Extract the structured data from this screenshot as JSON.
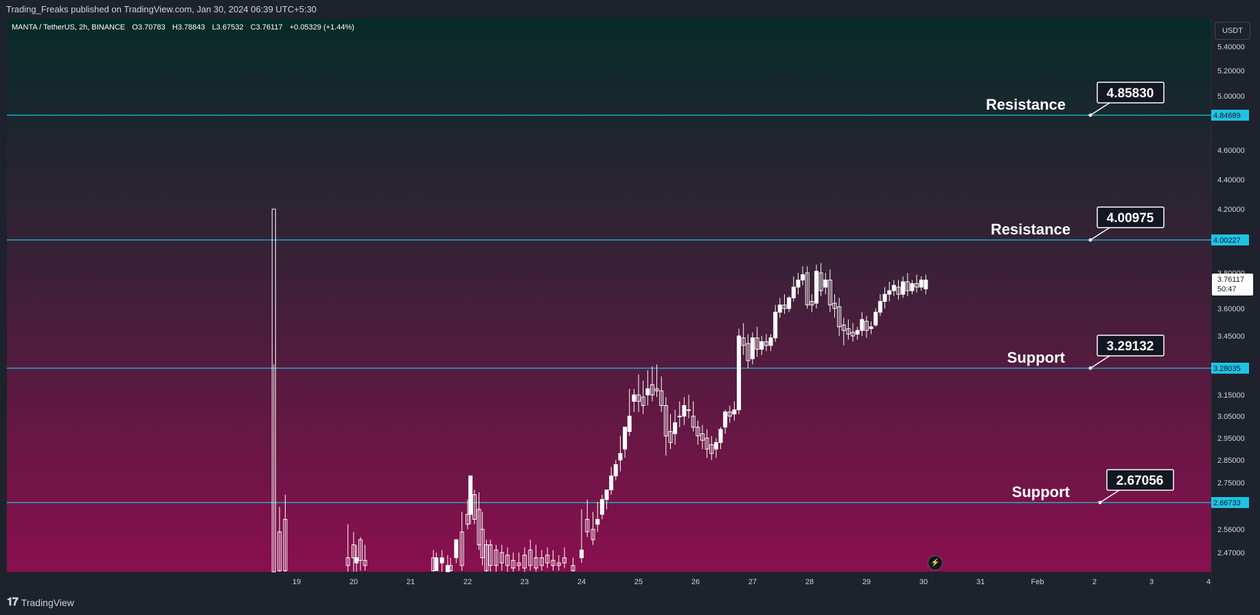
{
  "header": {
    "publish_info": "Trading_Freaks published on TradingView.com, Jan 30, 2024 06:39 UTC+5:30"
  },
  "legend": {
    "symbol": "MANTA / TetherUS, 2h, BINANCE",
    "open": "O3.70783",
    "high": "H3.78843",
    "low": "L3.67532",
    "close": "C3.76117",
    "change": "+0.05329 (+1.44%)"
  },
  "currency_label": "USDT",
  "price_tag": {
    "price": "3.76117",
    "countdown": "50:47"
  },
  "footer": {
    "brand": "TradingView"
  },
  "colors": {
    "bg_top": "#062b26",
    "bg_mid": "#3a2137",
    "bg_bottom": "#8a0f4f",
    "line": "#1fc3e4",
    "candle": "#ffffff",
    "axis_text": "#d1d4dc"
  },
  "chart_data": {
    "type": "candlestick",
    "symbol": "MANTA / TetherUS",
    "interval": "2h",
    "exchange": "BINANCE",
    "y_axis": {
      "range": [
        2.4,
        5.5
      ],
      "ticks": [
        "5.40000",
        "5.20000",
        "5.00000",
        "4.60000",
        "4.40000",
        "4.20000",
        "3.80000",
        "3.60000",
        "3.45000",
        "3.15000",
        "3.05000",
        "2.95000",
        "2.85000",
        "2.75000",
        "2.56000",
        "2.47000"
      ],
      "tick_values": [
        5.4,
        5.2,
        5.0,
        4.6,
        4.4,
        4.2,
        3.8,
        3.6,
        3.45,
        3.15,
        3.05,
        2.95,
        2.85,
        2.75,
        2.56,
        2.47
      ]
    },
    "x_axis": {
      "ticks": [
        "19",
        "20",
        "21",
        "22",
        "23",
        "24",
        "25",
        "26",
        "27",
        "28",
        "29",
        "30",
        "31",
        "Feb",
        "2",
        "3",
        "4"
      ],
      "tick_day_index": [
        0,
        1,
        2,
        3,
        4,
        5,
        6,
        7,
        8,
        9,
        10,
        11,
        12,
        13,
        14,
        15,
        16
      ]
    },
    "horizontal_lines": [
      {
        "kind": "resistance",
        "text": "Resistance",
        "callout": "4.85830",
        "axis_label": "4.84689",
        "value": 4.84689
      },
      {
        "kind": "resistance",
        "text": "Resistance",
        "callout": "4.00975",
        "axis_label": "4.00227",
        "value": 4.00227
      },
      {
        "kind": "support",
        "text": "Support",
        "callout": "3.29132",
        "axis_label": "3.28035",
        "value": 3.28035
      },
      {
        "kind": "support",
        "text": "Support",
        "callout": "2.67056",
        "axis_label": "2.66733",
        "value": 2.66733
      }
    ],
    "candles": [
      [
        18.6,
        4.2,
        3.3,
        2.35,
        2.3
      ],
      [
        18.7,
        2.55,
        2.65,
        2.4,
        2.39
      ],
      [
        18.8,
        2.6,
        2.7,
        2.4,
        2.38
      ],
      [
        19.9,
        2.45,
        2.58,
        2.42,
        2.35
      ],
      [
        20.0,
        2.5,
        2.55,
        2.45,
        2.38
      ],
      [
        20.05,
        2.43,
        2.5,
        2.45,
        2.38
      ],
      [
        20.12,
        2.52,
        2.53,
        2.44,
        2.4
      ],
      [
        20.2,
        2.44,
        2.5,
        2.42,
        2.4
      ],
      [
        21.4,
        2.45,
        2.48,
        2.4,
        2.39
      ],
      [
        21.45,
        2.4,
        2.47,
        2.45,
        2.4
      ],
      [
        21.55,
        2.43,
        2.48,
        2.45,
        2.38
      ],
      [
        21.65,
        2.39,
        2.46,
        2.42,
        2.38
      ],
      [
        21.7,
        2.42,
        2.45,
        2.4,
        2.36
      ],
      [
        21.8,
        2.45,
        2.5,
        2.52,
        2.43
      ],
      [
        21.9,
        2.55,
        2.63,
        2.42,
        2.4
      ],
      [
        22.0,
        2.62,
        2.68,
        2.58,
        2.56
      ],
      [
        22.05,
        2.62,
        2.69,
        2.78,
        2.58
      ],
      [
        22.12,
        2.7,
        2.72,
        2.6,
        2.58
      ],
      [
        22.2,
        2.64,
        2.71,
        2.5,
        2.48
      ],
      [
        22.26,
        2.56,
        2.63,
        2.45,
        2.42
      ],
      [
        22.33,
        2.5,
        2.52,
        2.4,
        2.38
      ],
      [
        22.4,
        2.5,
        2.52,
        2.42,
        2.39
      ],
      [
        22.5,
        2.48,
        2.5,
        2.42,
        2.38
      ],
      [
        22.6,
        2.47,
        2.5,
        2.43,
        2.4
      ],
      [
        22.7,
        2.46,
        2.49,
        2.42,
        2.39
      ],
      [
        22.8,
        2.44,
        2.47,
        2.41,
        2.38
      ],
      [
        22.9,
        2.43,
        2.47,
        2.42,
        2.4
      ],
      [
        23.0,
        2.46,
        2.49,
        2.41,
        2.39
      ],
      [
        23.1,
        2.48,
        2.52,
        2.42,
        2.4
      ],
      [
        23.2,
        2.45,
        2.5,
        2.41,
        2.39
      ],
      [
        23.3,
        2.45,
        2.48,
        2.42,
        2.4
      ],
      [
        23.4,
        2.46,
        2.49,
        2.43,
        2.41
      ],
      [
        23.5,
        2.44,
        2.48,
        2.42,
        2.4
      ],
      [
        23.6,
        2.43,
        2.46,
        2.42,
        2.4
      ],
      [
        23.7,
        2.45,
        2.49,
        2.43,
        2.41
      ],
      [
        23.85,
        2.42,
        2.45,
        2.4,
        2.38
      ],
      [
        24.0,
        2.45,
        2.64,
        2.48,
        2.43
      ],
      [
        24.1,
        2.6,
        2.68,
        2.55,
        2.53
      ],
      [
        24.2,
        2.56,
        2.63,
        2.52,
        2.5
      ],
      [
        24.28,
        2.58,
        2.67,
        2.6,
        2.55
      ],
      [
        24.36,
        2.62,
        2.7,
        2.68,
        2.6
      ],
      [
        24.44,
        2.68,
        2.72,
        2.72,
        2.64
      ],
      [
        24.52,
        2.72,
        2.82,
        2.78,
        2.7
      ],
      [
        24.6,
        2.78,
        2.85,
        2.83,
        2.76
      ],
      [
        24.68,
        2.85,
        2.96,
        2.88,
        2.8
      ],
      [
        24.76,
        2.9,
        2.98,
        3.0,
        2.86
      ],
      [
        24.84,
        2.98,
        3.18,
        3.05,
        2.96
      ],
      [
        24.92,
        3.12,
        3.18,
        3.15,
        3.07
      ],
      [
        25.0,
        3.15,
        3.25,
        3.12,
        3.07
      ],
      [
        25.08,
        3.14,
        3.22,
        3.1,
        3.06
      ],
      [
        25.16,
        3.15,
        3.27,
        3.18,
        3.1
      ],
      [
        25.24,
        3.2,
        3.29,
        3.15,
        3.12
      ],
      [
        25.32,
        3.18,
        3.3,
        3.17,
        3.14
      ],
      [
        25.4,
        3.17,
        3.24,
        3.1,
        3.07
      ],
      [
        25.48,
        3.1,
        3.14,
        2.96,
        2.87
      ],
      [
        25.56,
        2.98,
        3.06,
        2.93,
        2.9
      ],
      [
        25.64,
        2.97,
        3.08,
        3.02,
        2.92
      ],
      [
        25.72,
        3.05,
        3.12,
        3.05,
        3.0
      ],
      [
        25.8,
        3.05,
        3.14,
        3.1,
        3.01
      ],
      [
        25.88,
        3.08,
        3.15,
        3.08,
        3.04
      ],
      [
        25.96,
        3.05,
        3.12,
        3.0,
        2.98
      ],
      [
        26.04,
        3.0,
        3.03,
        2.96,
        2.92
      ],
      [
        26.12,
        2.97,
        3.01,
        2.94,
        2.9
      ],
      [
        26.2,
        2.95,
        2.99,
        2.9,
        2.86
      ],
      [
        26.28,
        2.92,
        2.96,
        2.88,
        2.85
      ],
      [
        26.36,
        2.9,
        2.95,
        2.93,
        2.86
      ],
      [
        26.44,
        2.93,
        3.0,
        2.99,
        2.9
      ],
      [
        26.52,
        3.0,
        3.08,
        3.07,
        2.97
      ],
      [
        26.6,
        3.07,
        3.1,
        3.05,
        3.02
      ],
      [
        26.68,
        3.06,
        3.12,
        3.08,
        3.03
      ],
      [
        26.76,
        3.08,
        3.49,
        3.45,
        3.06
      ],
      [
        26.84,
        3.44,
        3.52,
        3.4,
        3.35
      ],
      [
        26.92,
        3.41,
        3.46,
        3.32,
        3.28
      ],
      [
        27.0,
        3.33,
        3.47,
        3.44,
        3.3
      ],
      [
        27.08,
        3.44,
        3.5,
        3.38,
        3.34
      ],
      [
        27.16,
        3.38,
        3.45,
        3.42,
        3.35
      ],
      [
        27.24,
        3.42,
        3.46,
        3.4,
        3.37
      ],
      [
        27.32,
        3.4,
        3.46,
        3.44,
        3.37
      ],
      [
        27.4,
        3.44,
        3.62,
        3.58,
        3.42
      ],
      [
        27.48,
        3.58,
        3.66,
        3.62,
        3.55
      ],
      [
        27.56,
        3.62,
        3.68,
        3.6,
        3.57
      ],
      [
        27.64,
        3.6,
        3.67,
        3.66,
        3.58
      ],
      [
        27.72,
        3.66,
        3.78,
        3.72,
        3.64
      ],
      [
        27.8,
        3.72,
        3.8,
        3.76,
        3.68
      ],
      [
        27.88,
        3.76,
        3.84,
        3.79,
        3.73
      ],
      [
        27.96,
        3.8,
        3.84,
        3.62,
        3.6
      ],
      [
        28.04,
        3.64,
        3.68,
        3.62,
        3.58
      ],
      [
        28.12,
        3.63,
        3.85,
        3.81,
        3.6
      ],
      [
        28.2,
        3.8,
        3.86,
        3.7,
        3.67
      ],
      [
        28.28,
        3.72,
        3.8,
        3.76,
        3.68
      ],
      [
        28.36,
        3.76,
        3.82,
        3.62,
        3.58
      ],
      [
        28.44,
        3.63,
        3.68,
        3.6,
        3.55
      ],
      [
        28.52,
        3.61,
        3.66,
        3.5,
        3.45
      ],
      [
        28.6,
        3.51,
        3.55,
        3.48,
        3.4
      ],
      [
        28.68,
        3.49,
        3.54,
        3.46,
        3.43
      ],
      [
        28.76,
        3.47,
        3.52,
        3.45,
        3.42
      ],
      [
        28.84,
        3.46,
        3.5,
        3.48,
        3.43
      ],
      [
        28.92,
        3.48,
        3.58,
        3.54,
        3.45
      ],
      [
        29.0,
        3.53,
        3.56,
        3.48,
        3.44
      ],
      [
        29.08,
        3.49,
        3.53,
        3.5,
        3.46
      ],
      [
        29.16,
        3.51,
        3.6,
        3.58,
        3.5
      ],
      [
        29.24,
        3.58,
        3.68,
        3.64,
        3.56
      ],
      [
        29.32,
        3.64,
        3.72,
        3.68,
        3.6
      ],
      [
        29.4,
        3.68,
        3.75,
        3.7,
        3.64
      ],
      [
        29.48,
        3.7,
        3.76,
        3.73,
        3.67
      ],
      [
        29.56,
        3.72,
        3.76,
        3.68,
        3.65
      ],
      [
        29.64,
        3.68,
        3.78,
        3.75,
        3.66
      ],
      [
        29.72,
        3.75,
        3.8,
        3.7,
        3.67
      ],
      [
        29.8,
        3.7,
        3.76,
        3.74,
        3.68
      ],
      [
        29.88,
        3.74,
        3.79,
        3.72,
        3.69
      ],
      [
        29.96,
        3.72,
        3.78,
        3.76,
        3.7
      ],
      [
        30.04,
        3.71,
        3.79,
        3.76,
        3.68
      ]
    ],
    "candle_format": [
      "day_pos",
      "open",
      "high",
      "close",
      "low"
    ]
  }
}
